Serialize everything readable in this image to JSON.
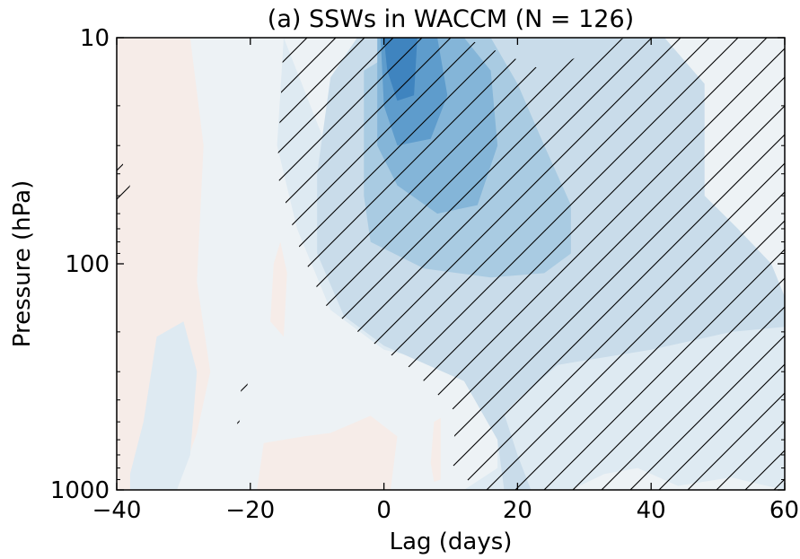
{
  "chart_data": {
    "type": "heatmap",
    "title": "(a) SSWs in WACCM (N = 126)",
    "xlabel": "Lag (days)",
    "ylabel": "Pressure (hPa)",
    "xlim": [
      -40,
      60
    ],
    "ylim": [
      1000,
      10
    ],
    "yscale": "log",
    "x_ticks": [
      -40,
      -20,
      0,
      20,
      40,
      60
    ],
    "x_tick_labels": [
      "−40",
      "−20",
      "0",
      "20",
      "40",
      "60"
    ],
    "y_ticks": [
      10,
      100,
      1000
    ],
    "y_tick_labels": [
      "10",
      "100",
      "1000"
    ],
    "grid": false,
    "colors": {
      "background": "#edf2f5",
      "positive_weak": "#f6ece8",
      "level_1": "#deeaf2",
      "level_2": "#c9dcea",
      "level_3": "#a9cbe2",
      "level_4": "#84b5d8",
      "level_5": "#5e9ccc",
      "level_6": "#3f84bf",
      "hatch": "#000000"
    },
    "regions": [
      {
        "level": "positive_weak",
        "points": [
          [
            -40,
            10
          ],
          [
            -29,
            10
          ],
          [
            -27,
            30
          ],
          [
            -28,
            120
          ],
          [
            -26,
            300
          ],
          [
            -28,
            560
          ],
          [
            -31,
            1000
          ],
          [
            -40,
            1000
          ]
        ]
      },
      {
        "level": "positive_weak",
        "points": [
          [
            -17,
            180
          ],
          [
            -16.5,
            100
          ],
          [
            -15.5,
            80
          ],
          [
            -14.5,
            110
          ],
          [
            -15,
            210
          ]
        ]
      },
      {
        "level": "positive_weak",
        "points": [
          [
            -19,
            1000
          ],
          [
            -18,
            620
          ],
          [
            -12,
            580
          ],
          [
            -8,
            560
          ],
          [
            -2,
            470
          ],
          [
            2,
            580
          ],
          [
            1,
            1000
          ]
        ]
      },
      {
        "level": "positive_weak",
        "points": [
          [
            7,
            760
          ],
          [
            7.5,
            500
          ],
          [
            8.5,
            480
          ],
          [
            8.5,
            900
          ],
          [
            7.5,
            920
          ]
        ]
      },
      {
        "level": "level_1",
        "points": [
          [
            -38,
            850
          ],
          [
            -36,
            500
          ],
          [
            -34,
            210
          ],
          [
            -30,
            180
          ],
          [
            -28,
            300
          ],
          [
            -29,
            700
          ],
          [
            -31,
            1000
          ],
          [
            -38,
            1000
          ]
        ]
      },
      {
        "level": "level_1",
        "points": [
          [
            -15,
            10
          ],
          [
            -7,
            40
          ],
          [
            -4,
            90
          ],
          [
            5,
            180
          ],
          [
            20,
            220
          ],
          [
            32,
            200
          ],
          [
            42,
            175
          ],
          [
            52,
            185
          ],
          [
            60,
            170
          ],
          [
            60,
            1000
          ],
          [
            56,
            940
          ],
          [
            52,
            880
          ],
          [
            44,
            960
          ],
          [
            38,
            800
          ],
          [
            33,
            850
          ],
          [
            28,
            1000
          ],
          [
            12,
            1000
          ],
          [
            17,
            800
          ],
          [
            17,
            540
          ],
          [
            14,
            300
          ],
          [
            0,
            240
          ],
          [
            -8,
            160
          ],
          [
            -13,
            70
          ],
          [
            -16,
            30
          ]
        ]
      },
      {
        "level": "level_2",
        "points": [
          [
            -4,
            10
          ],
          [
            42,
            10
          ],
          [
            48,
            16
          ],
          [
            48,
            50
          ],
          [
            53,
            70
          ],
          [
            58,
            100
          ],
          [
            60,
            140
          ],
          [
            60,
            190
          ],
          [
            52,
            200
          ],
          [
            40,
            240
          ],
          [
            26,
            280
          ],
          [
            20,
            400
          ],
          [
            18,
            460
          ],
          [
            20,
            700
          ],
          [
            22,
            1000
          ],
          [
            18,
            1000
          ],
          [
            17,
            600
          ],
          [
            12,
            330
          ],
          [
            0,
            230
          ],
          [
            -6,
            170
          ],
          [
            -10,
            90
          ],
          [
            -10,
            40
          ],
          [
            -8,
            15
          ]
        ]
      },
      {
        "level": "level_3",
        "points": [
          [
            -3,
            14
          ],
          [
            5,
            10
          ],
          [
            16,
            10
          ],
          [
            20,
            16
          ],
          [
            24,
            30
          ],
          [
            28,
            55
          ],
          [
            28,
            90
          ],
          [
            24,
            110
          ],
          [
            16,
            115
          ],
          [
            6,
            105
          ],
          [
            -2,
            80
          ],
          [
            -3,
            50
          ]
        ]
      },
      {
        "level": "level_4",
        "points": [
          [
            -1,
            10
          ],
          [
            12,
            10
          ],
          [
            16,
            14
          ],
          [
            17,
            30
          ],
          [
            14,
            55
          ],
          [
            8,
            60
          ],
          [
            2,
            45
          ],
          [
            -1,
            30
          ]
        ]
      },
      {
        "level": "level_5",
        "points": [
          [
            -0.5,
            10
          ],
          [
            8,
            10
          ],
          [
            9.5,
            18
          ],
          [
            7,
            28
          ],
          [
            2,
            30
          ],
          [
            0,
            20
          ]
        ]
      },
      {
        "level": "level_6",
        "points": [
          [
            0,
            10
          ],
          [
            5,
            10
          ],
          [
            4.5,
            18
          ],
          [
            2,
            19
          ],
          [
            0.5,
            14
          ]
        ]
      }
    ],
    "hatch_regions": [
      {
        "points": [
          [
            -15,
            10
          ],
          [
            12,
            10
          ],
          [
            24,
            14
          ],
          [
            36,
            10
          ],
          [
            60,
            10
          ],
          [
            60,
            1000
          ],
          [
            14,
            1000
          ],
          [
            10,
            760
          ],
          [
            11,
            460
          ],
          [
            4,
            290
          ],
          [
            -3,
            210
          ],
          [
            -9,
            150
          ],
          [
            -13,
            80
          ],
          [
            -16,
            40
          ]
        ]
      },
      {
        "points": [
          [
            -40,
            70
          ],
          [
            -38,
            45
          ],
          [
            -40,
            30
          ]
        ]
      },
      {
        "points": [
          [
            -22,
            560
          ],
          [
            -20,
            300
          ],
          [
            -21,
            280
          ],
          [
            -22,
            520
          ]
        ]
      }
    ]
  }
}
